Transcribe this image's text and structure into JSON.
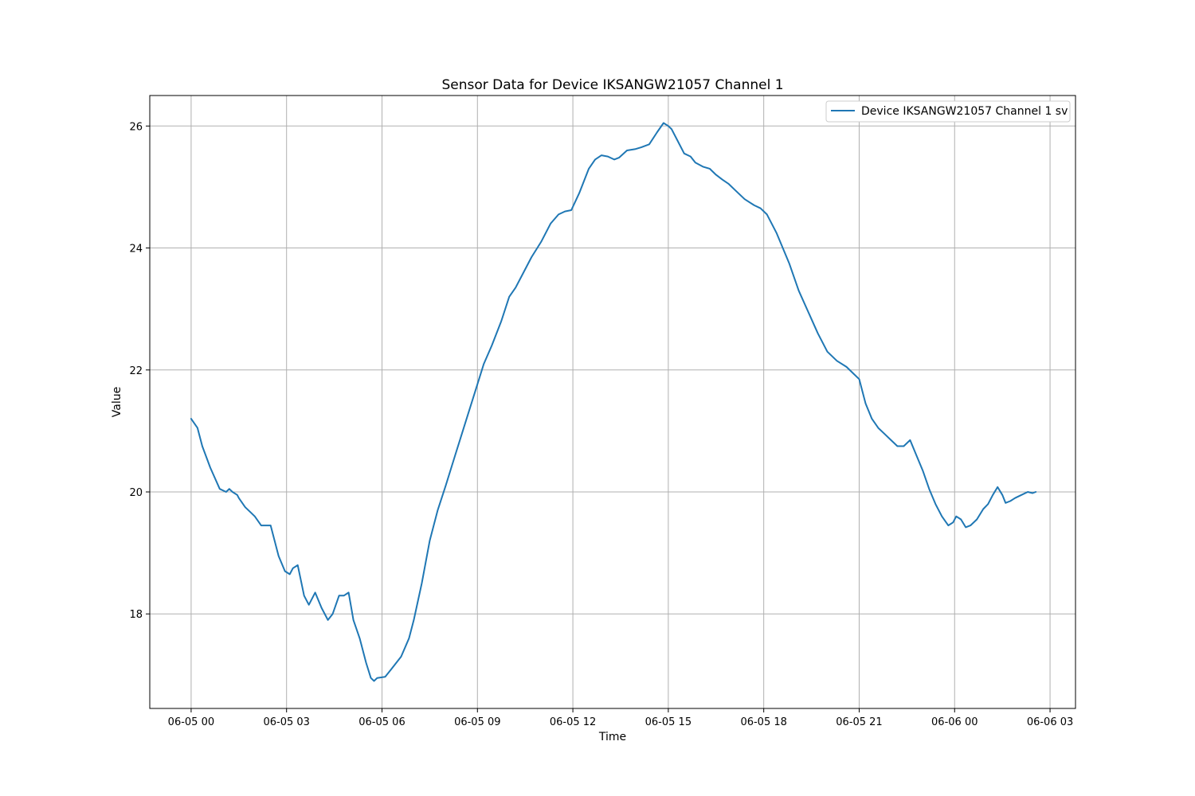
{
  "chart_data": {
    "type": "line",
    "title": "Sensor Data for Device IKSANGW21057 Channel 1",
    "xlabel": "Time",
    "ylabel": "Value",
    "x_unit": "hours from 06-05 00",
    "xlim": [
      -1.3,
      27.8
    ],
    "ylim": [
      16.45,
      26.5
    ],
    "x_ticks": [
      {
        "value": 0,
        "label": "06-05 00"
      },
      {
        "value": 3,
        "label": "06-05 03"
      },
      {
        "value": 6,
        "label": "06-05 06"
      },
      {
        "value": 9,
        "label": "06-05 09"
      },
      {
        "value": 12,
        "label": "06-05 12"
      },
      {
        "value": 15,
        "label": "06-05 15"
      },
      {
        "value": 18,
        "label": "06-05 18"
      },
      {
        "value": 21,
        "label": "06-05 21"
      },
      {
        "value": 24,
        "label": "06-06 00"
      },
      {
        "value": 27,
        "label": "06-06 03"
      }
    ],
    "y_ticks": [
      {
        "value": 18,
        "label": "18"
      },
      {
        "value": 20,
        "label": "20"
      },
      {
        "value": 22,
        "label": "22"
      },
      {
        "value": 24,
        "label": "24"
      },
      {
        "value": 26,
        "label": "26"
      }
    ],
    "grid": true,
    "legend": {
      "placement": "top-right"
    },
    "series": [
      {
        "name": "Device IKSANGW21057 Channel 1 sv",
        "color": "#1f77b4",
        "x": [
          0.0,
          0.2,
          0.35,
          0.6,
          0.9,
          1.1,
          1.2,
          1.3,
          1.45,
          1.5,
          1.7,
          1.9,
          2.0,
          2.2,
          2.4,
          2.5,
          2.75,
          2.95,
          3.1,
          3.2,
          3.35,
          3.45,
          3.55,
          3.7,
          3.9,
          4.1,
          4.3,
          4.45,
          4.65,
          4.8,
          4.95,
          5.1,
          5.3,
          5.5,
          5.65,
          5.75,
          5.85,
          6.1,
          6.3,
          6.6,
          6.85,
          7.0,
          7.25,
          7.5,
          7.75,
          8.0,
          8.3,
          8.6,
          8.9,
          9.2,
          9.45,
          9.75,
          10.0,
          10.2,
          10.4,
          10.7,
          11.0,
          11.3,
          11.55,
          11.75,
          11.95,
          12.2,
          12.5,
          12.7,
          12.9,
          13.1,
          13.3,
          13.45,
          13.7,
          13.95,
          14.15,
          14.4,
          14.65,
          14.85,
          15.0,
          15.1,
          15.3,
          15.5,
          15.7,
          15.85,
          16.1,
          16.3,
          16.5,
          16.7,
          16.9,
          17.1,
          17.4,
          17.7,
          17.9,
          18.1,
          18.4,
          18.8,
          19.1,
          19.4,
          19.7,
          20.0,
          20.3,
          20.6,
          20.8,
          21.0,
          21.2,
          21.4,
          21.6,
          21.8,
          22.0,
          22.2,
          22.4,
          22.6,
          22.8,
          23.0,
          23.2,
          23.4,
          23.6,
          23.8,
          23.95,
          24.05,
          24.2,
          24.35,
          24.5,
          24.7,
          24.9,
          25.05,
          25.2,
          25.35,
          25.5,
          25.6,
          25.75,
          25.9,
          26.1,
          26.3,
          26.45,
          26.55
        ],
        "y": [
          21.2,
          21.05,
          20.75,
          20.4,
          20.05,
          20.0,
          20.05,
          20.0,
          19.95,
          19.9,
          19.75,
          19.65,
          19.6,
          19.45,
          19.45,
          19.45,
          18.95,
          18.7,
          18.65,
          18.75,
          18.8,
          18.55,
          18.3,
          18.15,
          18.35,
          18.1,
          17.9,
          18.0,
          18.3,
          18.3,
          18.35,
          17.9,
          17.6,
          17.2,
          16.95,
          16.9,
          16.95,
          16.97,
          17.1,
          17.3,
          17.6,
          17.9,
          18.5,
          19.2,
          19.7,
          20.1,
          20.6,
          21.1,
          21.6,
          22.1,
          22.4,
          22.8,
          23.2,
          23.35,
          23.55,
          23.85,
          24.1,
          24.4,
          24.55,
          24.6,
          24.62,
          24.9,
          25.3,
          25.45,
          25.52,
          25.5,
          25.45,
          25.48,
          25.6,
          25.62,
          25.65,
          25.7,
          25.9,
          26.05,
          26.0,
          25.95,
          25.75,
          25.55,
          25.5,
          25.4,
          25.33,
          25.3,
          25.2,
          25.12,
          25.05,
          24.95,
          24.8,
          24.7,
          24.65,
          24.55,
          24.25,
          23.75,
          23.3,
          22.95,
          22.6,
          22.3,
          22.15,
          22.05,
          21.95,
          21.85,
          21.45,
          21.2,
          21.05,
          20.95,
          20.85,
          20.75,
          20.75,
          20.85,
          20.6,
          20.35,
          20.05,
          19.8,
          19.6,
          19.45,
          19.5,
          19.6,
          19.55,
          19.42,
          19.45,
          19.55,
          19.72,
          19.8,
          19.95,
          20.08,
          19.95,
          19.82,
          19.85,
          19.9,
          19.95,
          20.0,
          19.98,
          20.0
        ]
      }
    ]
  }
}
